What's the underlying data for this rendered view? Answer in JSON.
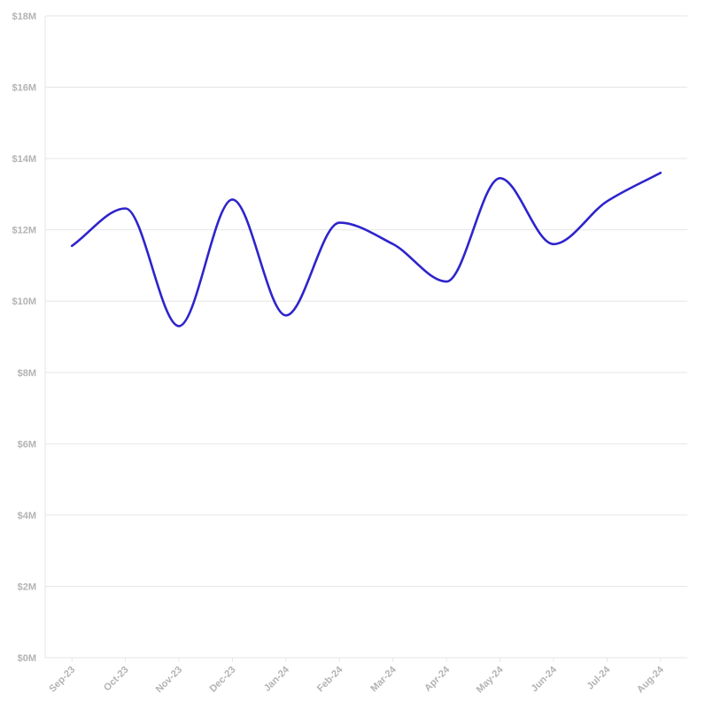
{
  "chart_data": {
    "type": "line",
    "title": "",
    "xlabel": "",
    "ylabel": "",
    "categories": [
      "Sep-23",
      "Oct-23",
      "Nov-23",
      "Dec-23",
      "Jan-24",
      "Feb-24",
      "Mar-24",
      "Apr-24",
      "May-24",
      "Jun-24",
      "Jul-24",
      "Aug-24"
    ],
    "series": [
      {
        "color": "#2e24cc",
        "values": [
          11.55,
          12.6,
          9.3,
          12.85,
          9.6,
          12.2,
          11.6,
          10.55,
          13.45,
          11.6,
          12.8,
          13.6
        ]
      }
    ],
    "ylim": [
      0,
      18
    ],
    "yticks": [
      0,
      2,
      4,
      6,
      8,
      10,
      12,
      14,
      16,
      18
    ],
    "ytick_labels": [
      "$0M",
      "$2M",
      "$4M",
      "$6M",
      "$8M",
      "$10M",
      "$12M",
      "$14M",
      "$16M",
      "$18M"
    ],
    "grid": true,
    "legend": "none",
    "curve": "smooth"
  }
}
